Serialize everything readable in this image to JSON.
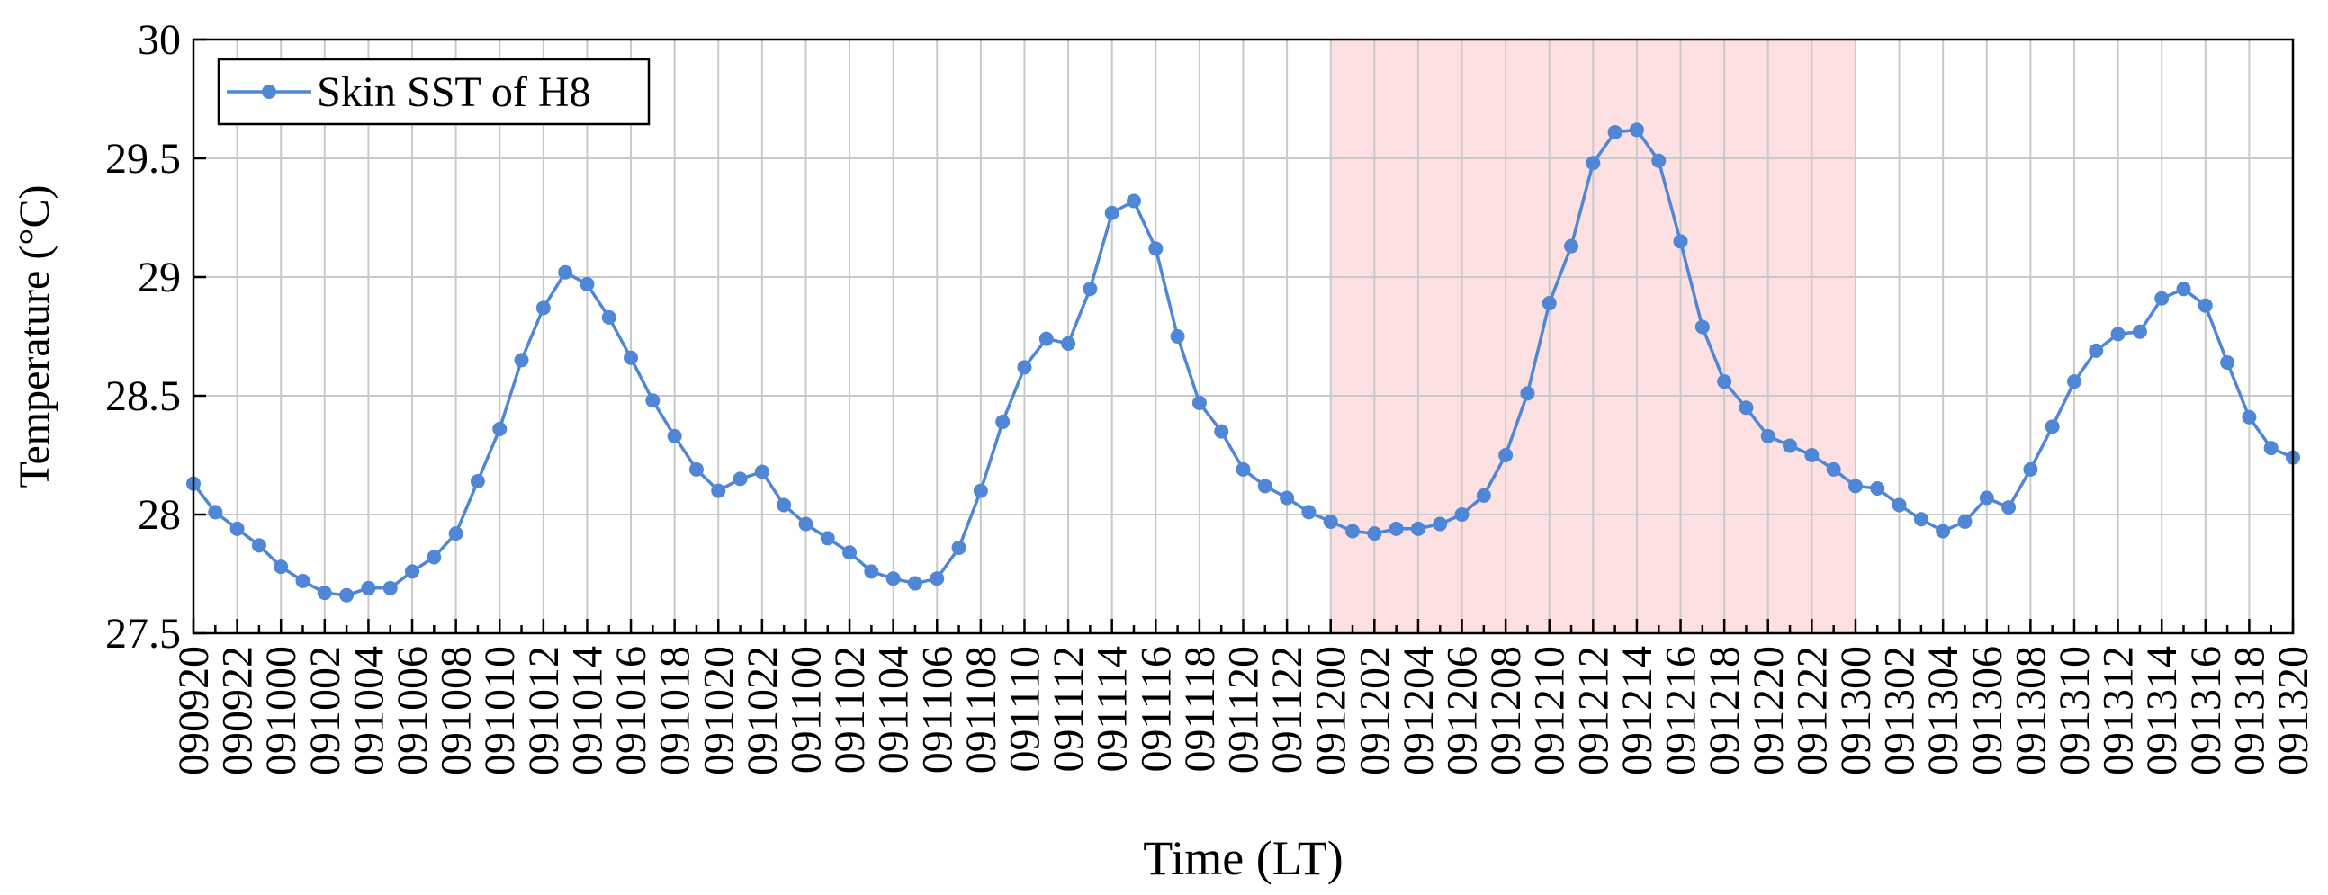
{
  "chart_data": {
    "type": "line",
    "xlabel": "Time (LT)",
    "ylabel": "Temperature (°C)",
    "ylim": [
      27.5,
      30
    ],
    "yticks": [
      27.5,
      28,
      28.5,
      29,
      29.5,
      30
    ],
    "ytick_labels": [
      "27.5",
      "28",
      "28.5",
      "29",
      "29.5",
      "30"
    ],
    "grid": true,
    "legend_position": "top-left",
    "highlight": {
      "from": "091200",
      "to": "091300",
      "color": "#fde0e2"
    },
    "x_tick_labels": [
      "090920",
      "090922",
      "091000",
      "091002",
      "091004",
      "091006",
      "091008",
      "091010",
      "091012",
      "091014",
      "091016",
      "091018",
      "091020",
      "091022",
      "091100",
      "091102",
      "091104",
      "091106",
      "091108",
      "091110",
      "091112",
      "091114",
      "091116",
      "091118",
      "091120",
      "091122",
      "091200",
      "091202",
      "091204",
      "091206",
      "091208",
      "091210",
      "091212",
      "091214",
      "091216",
      "091218",
      "091220",
      "091222",
      "091300",
      "091302",
      "091304",
      "091306",
      "091308",
      "091310",
      "091312",
      "091314",
      "091316",
      "091318",
      "091320"
    ],
    "x": [
      "090920",
      "090921",
      "090922",
      "090923",
      "091000",
      "091001",
      "091002",
      "091003",
      "091004",
      "091005",
      "091006",
      "091007",
      "091008",
      "091009",
      "091010",
      "091011",
      "091012",
      "091013",
      "091014",
      "091015",
      "091016",
      "091017",
      "091018",
      "091019",
      "091020",
      "091021",
      "091022",
      "091023",
      "091100",
      "091101",
      "091102",
      "091103",
      "091104",
      "091105",
      "091106",
      "091107",
      "091108",
      "091109",
      "091110",
      "091111",
      "091112",
      "091113",
      "091114",
      "091115",
      "091116",
      "091117",
      "091118",
      "091119",
      "091120",
      "091121",
      "091122",
      "091123",
      "091200",
      "091201",
      "091202",
      "091203",
      "091204",
      "091205",
      "091206",
      "091207",
      "091208",
      "091209",
      "091210",
      "091211",
      "091212",
      "091213",
      "091214",
      "091215",
      "091216",
      "091217",
      "091218",
      "091219",
      "091220",
      "091221",
      "091222",
      "091223",
      "091300",
      "091301",
      "091302",
      "091303",
      "091304",
      "091305",
      "091306",
      "091307",
      "091308",
      "091309",
      "091310",
      "091311",
      "091312",
      "091313",
      "091314",
      "091315",
      "091316",
      "091317",
      "091318",
      "091319",
      "091320"
    ],
    "series": [
      {
        "name": "Skin SST of H8",
        "color": "#4f86d6",
        "values": [
          28.13,
          28.01,
          27.94,
          27.87,
          27.78,
          27.72,
          27.67,
          27.66,
          27.69,
          27.69,
          27.76,
          27.82,
          27.92,
          28.14,
          28.36,
          28.65,
          28.87,
          29.02,
          28.97,
          28.83,
          28.66,
          28.48,
          28.33,
          28.19,
          28.1,
          28.15,
          28.18,
          28.04,
          27.96,
          27.9,
          27.84,
          27.76,
          27.73,
          27.71,
          27.73,
          27.86,
          28.1,
          28.39,
          28.62,
          28.74,
          28.72,
          28.95,
          29.27,
          29.32,
          29.12,
          28.75,
          28.47,
          28.35,
          28.19,
          28.12,
          28.07,
          28.01,
          27.97,
          27.93,
          27.92,
          27.94,
          27.94,
          27.96,
          28.0,
          28.08,
          28.25,
          28.51,
          28.89,
          29.13,
          29.48,
          29.61,
          29.62,
          29.49,
          29.15,
          28.79,
          28.56,
          28.45,
          28.33,
          28.29,
          28.25,
          28.19,
          28.12,
          28.11,
          28.04,
          27.98,
          27.93,
          27.97,
          28.07,
          28.03,
          28.19,
          28.37,
          28.56,
          28.69,
          28.76,
          28.77,
          28.91,
          28.95,
          28.88,
          28.64,
          28.41,
          28.28,
          28.24
        ]
      }
    ]
  }
}
